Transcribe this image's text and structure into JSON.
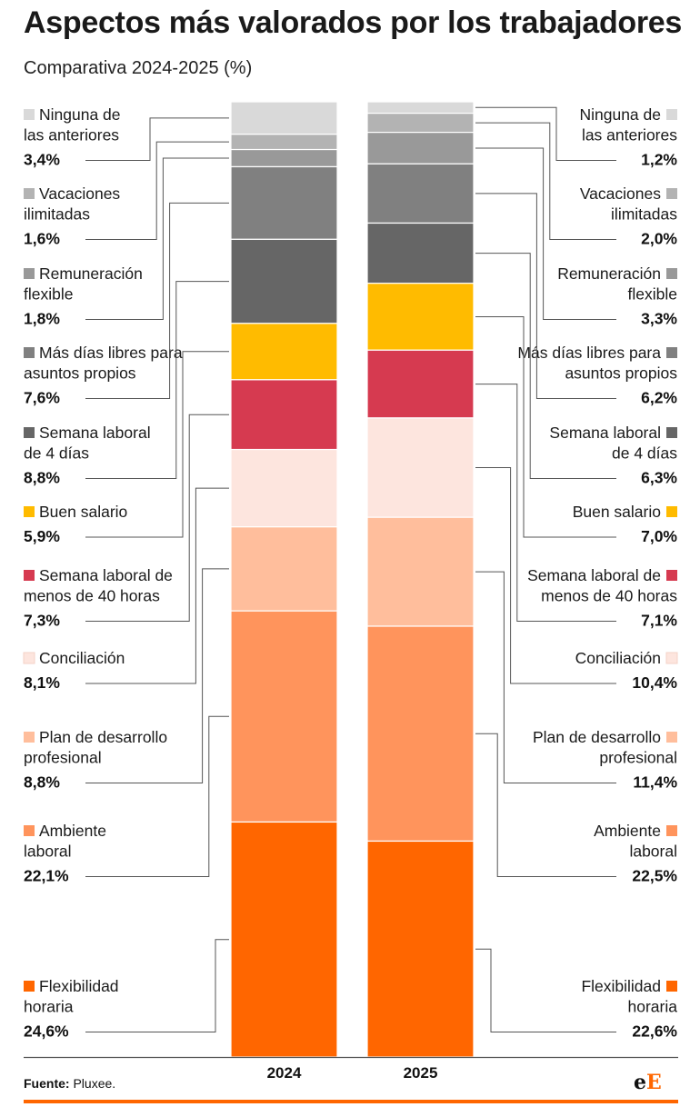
{
  "header": {
    "title": "Aspectos más valorados por los trabajadores",
    "subtitle": "Comparativa 2024-2025 (%)"
  },
  "footer": {
    "source_label": "Fuente:",
    "source_value": "Pluxee.",
    "logo_e1": "e",
    "logo_e2": "E"
  },
  "colors": {
    "accent": "#ff6600",
    "axis": "#555555",
    "leader": "#555555"
  },
  "chart_data": {
    "type": "bar",
    "stacked": true,
    "unit": "%",
    "categories": [
      "2024",
      "2025"
    ],
    "series": [
      {
        "name": "Ninguna de las anteriores",
        "label_lines": [
          "Ninguna de",
          "las anteriores"
        ],
        "color": "#d9d9d9",
        "values": [
          3.4,
          1.2
        ],
        "display": [
          "3,4%",
          "1,2%"
        ]
      },
      {
        "name": "Vacaciones ilimitadas",
        "label_lines": [
          "Vacaciones",
          "ilimitadas"
        ],
        "color": "#b3b3b3",
        "values": [
          1.6,
          2.0
        ],
        "display": [
          "1,6%",
          "2,0%"
        ]
      },
      {
        "name": "Remuneración flexible",
        "label_lines": [
          "Remuneración",
          "flexible"
        ],
        "color": "#999999",
        "values": [
          1.8,
          3.3
        ],
        "display": [
          "1,8%",
          "3,3%"
        ]
      },
      {
        "name": "Más días libres para asuntos propios",
        "label_lines": [
          "Más días libres para",
          "asuntos propios"
        ],
        "color": "#808080",
        "values": [
          7.6,
          6.2
        ],
        "display": [
          "7,6%",
          "6,2%"
        ]
      },
      {
        "name": "Semana laboral de 4 días",
        "label_lines": [
          "Semana laboral",
          "de 4 días"
        ],
        "color": "#666666",
        "values": [
          8.8,
          6.3
        ],
        "display": [
          "8,8%",
          "6,3%"
        ]
      },
      {
        "name": "Buen salario",
        "label_lines": [
          "Buen salario"
        ],
        "color": "#ffbb00",
        "values": [
          5.9,
          7.0
        ],
        "display": [
          "5,9%",
          "7,0%"
        ]
      },
      {
        "name": "Semana laboral de menos de 40 horas",
        "label_lines": [
          "Semana laboral de",
          "menos de 40 horas"
        ],
        "color": "#d63a50",
        "values": [
          7.3,
          7.1
        ],
        "display": [
          "7,3%",
          "7,1%"
        ]
      },
      {
        "name": "Conciliación",
        "label_lines": [
          "Conciliación"
        ],
        "color": "#fde5de",
        "values": [
          8.1,
          10.4
        ],
        "display": [
          "8,1%",
          "10,4%"
        ]
      },
      {
        "name": "Plan de desarrollo profesional",
        "label_lines": [
          "Plan de desarrollo",
          "profesional"
        ],
        "color": "#ffbe9c",
        "values": [
          8.8,
          11.4
        ],
        "display": [
          "8,8%",
          "11,4%"
        ]
      },
      {
        "name": "Ambiente laboral",
        "label_lines": [
          "Ambiente",
          "laboral"
        ],
        "color": "#ff945c",
        "values": [
          22.1,
          22.5
        ],
        "display": [
          "22,1%",
          "22,5%"
        ]
      },
      {
        "name": "Flexibilidad horaria",
        "label_lines": [
          "Flexibilidad",
          "horaria"
        ],
        "color": "#ff6600",
        "values": [
          24.6,
          22.6
        ],
        "display": [
          "24,6%",
          "22,6%"
        ]
      }
    ]
  }
}
